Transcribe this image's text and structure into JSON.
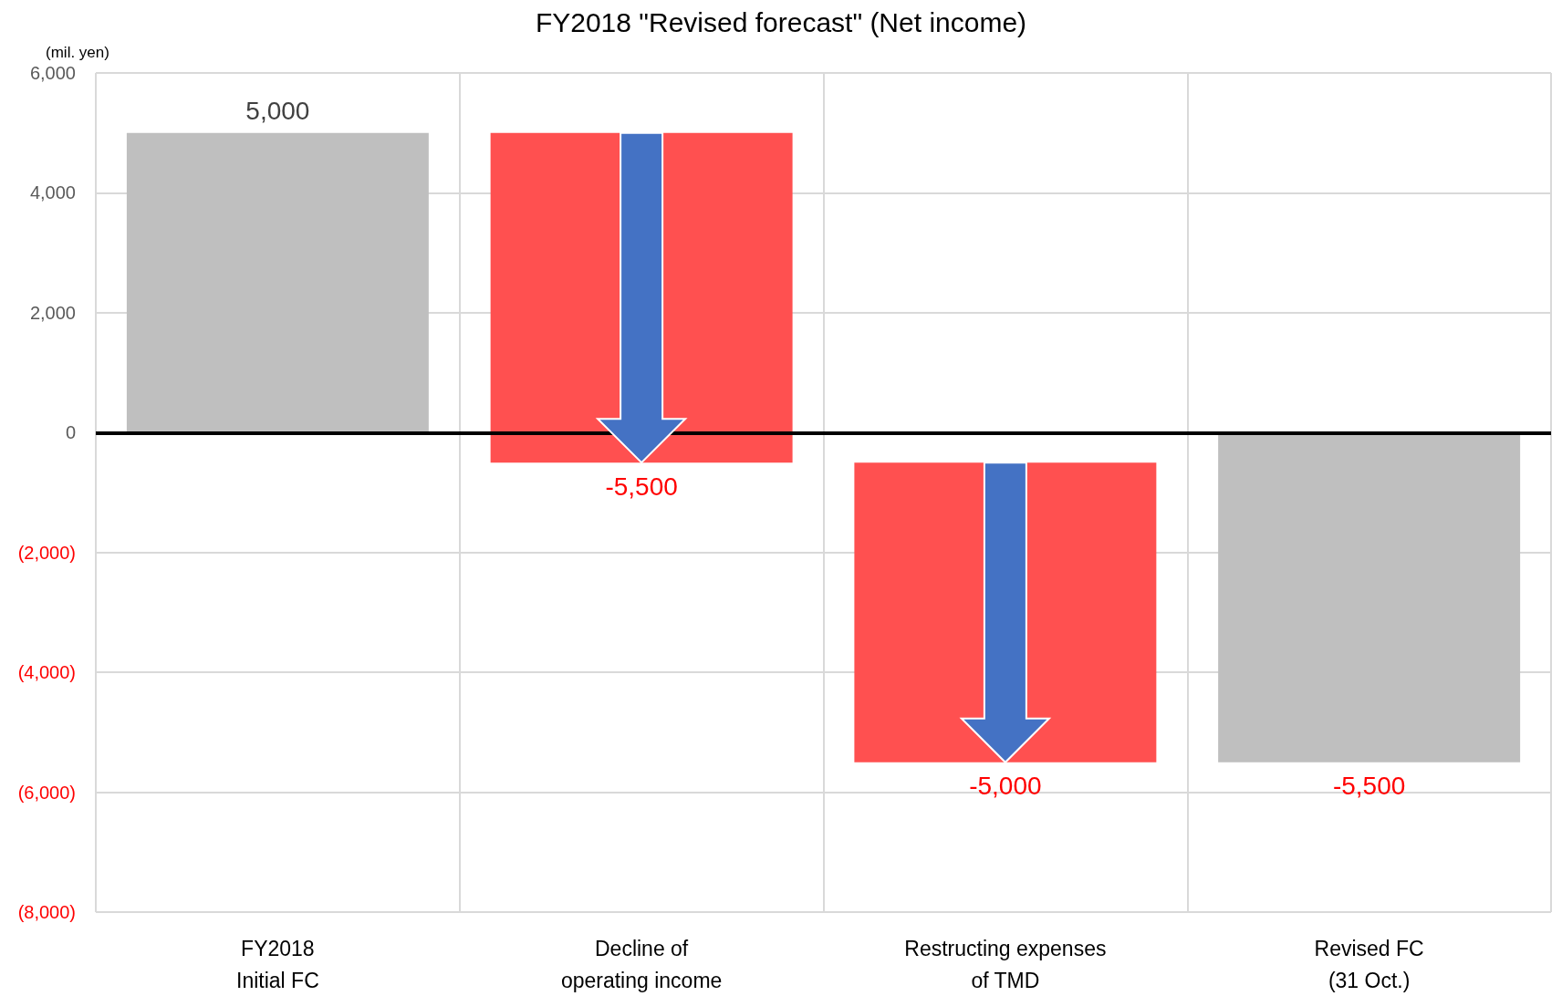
{
  "chart_data": {
    "type": "bar",
    "title": "FY2018 \"Revised forecast\" (Net income)",
    "ylabel": "(mil. yen)",
    "categories": [
      "FY2018\nInitial FC",
      "Decline of\noperating income",
      "Restructing expenses\nof TMD",
      "Revised FC\n(31 Oct.)"
    ],
    "values": [
      5000,
      -5500,
      -5000,
      -5500
    ],
    "base": [
      0,
      5000,
      -500,
      0
    ],
    "colors": [
      "#bfbfbf",
      "#ff5050",
      "#ff5050",
      "#bfbfbf"
    ],
    "value_labels": [
      "5,000",
      "-5,500",
      "-5,000",
      "-5,500"
    ],
    "ylim": [
      -8000,
      6000
    ],
    "yticks": [
      {
        "value": -8000,
        "label": "(8,000)"
      },
      {
        "value": -6000,
        "label": "(6,000)"
      },
      {
        "value": -4000,
        "label": "(4,000)"
      },
      {
        "value": -2000,
        "label": "(2,000)"
      },
      {
        "value": 0,
        "label": "0"
      },
      {
        "value": 2000,
        "label": "2,000"
      },
      {
        "value": 4000,
        "label": "4,000"
      },
      {
        "value": 6000,
        "label": "6,000"
      }
    ],
    "ref_lines": [
      {
        "axis": "y",
        "value": 0,
        "color": "#000000"
      }
    ],
    "grid": true
  }
}
